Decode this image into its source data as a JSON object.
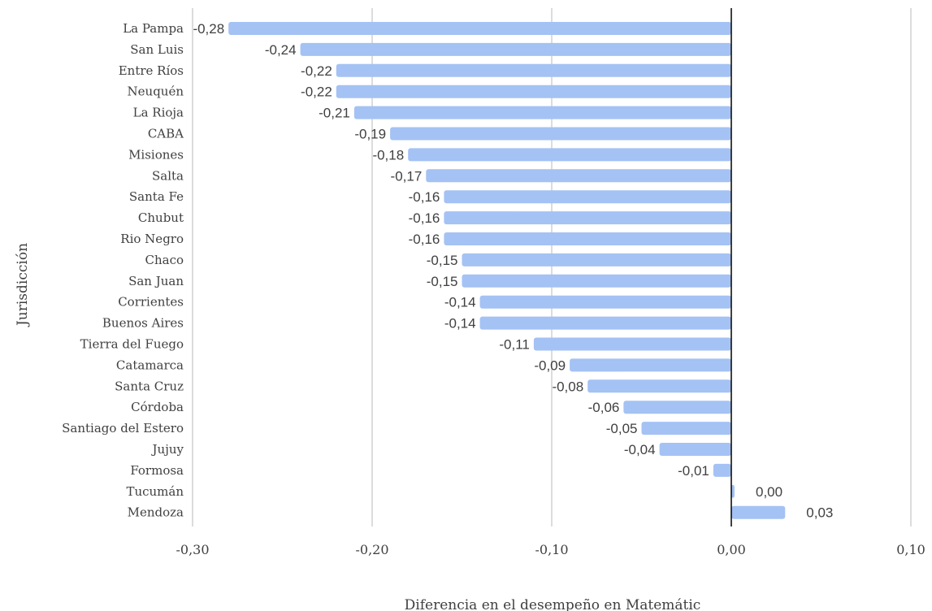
{
  "chart_data": {
    "type": "bar",
    "orientation": "horizontal",
    "categories": [
      "La Pampa",
      "San Luis",
      "Entre Ríos",
      "Neuquén",
      "La Rioja",
      "CABA",
      "Misiones",
      "Salta",
      "Santa Fe",
      "Chubut",
      "Rio Negro",
      "Chaco",
      "San Juan",
      "Corrientes",
      "Buenos Aires",
      "Tierra del Fuego",
      "Catamarca",
      "Santa Cruz",
      "Córdoba",
      "Santiago del Estero",
      "Jujuy",
      "Formosa",
      "Tucumán",
      "Mendoza"
    ],
    "values": [
      -0.28,
      -0.24,
      -0.22,
      -0.22,
      -0.21,
      -0.19,
      -0.18,
      -0.17,
      -0.16,
      -0.16,
      -0.16,
      -0.15,
      -0.15,
      -0.14,
      -0.14,
      -0.11,
      -0.09,
      -0.08,
      -0.06,
      -0.05,
      -0.04,
      -0.01,
      0.0,
      0.03
    ],
    "value_labels": [
      "-0,28",
      "-0,24",
      "-0,22",
      "-0,22",
      "-0,21",
      "-0,19",
      "-0,18",
      "-0,17",
      "-0,16",
      "-0,16",
      "-0,16",
      "-0,15",
      "-0,15",
      "-0,14",
      "-0,14",
      "-0,11",
      "-0,09",
      "-0,08",
      "-0,06",
      "-0,05",
      "-0,04",
      "-0,01",
      "0,00",
      "0,03"
    ],
    "xlim": [
      -0.3,
      0.1
    ],
    "xticks": [
      -0.3,
      -0.2,
      -0.1,
      0.0,
      0.1
    ],
    "xtick_labels": [
      "-0,30",
      "-0,20",
      "-0,10",
      "0,00",
      "0,10"
    ],
    "xlabel": "Diferencia en el desempeño en Matemátic",
    "ylabel": "Jurisdicción",
    "grid": true,
    "bar_color": "#a4c2f4",
    "grid_color": "#d0d0d0",
    "zero_line_color": "#000000"
  }
}
